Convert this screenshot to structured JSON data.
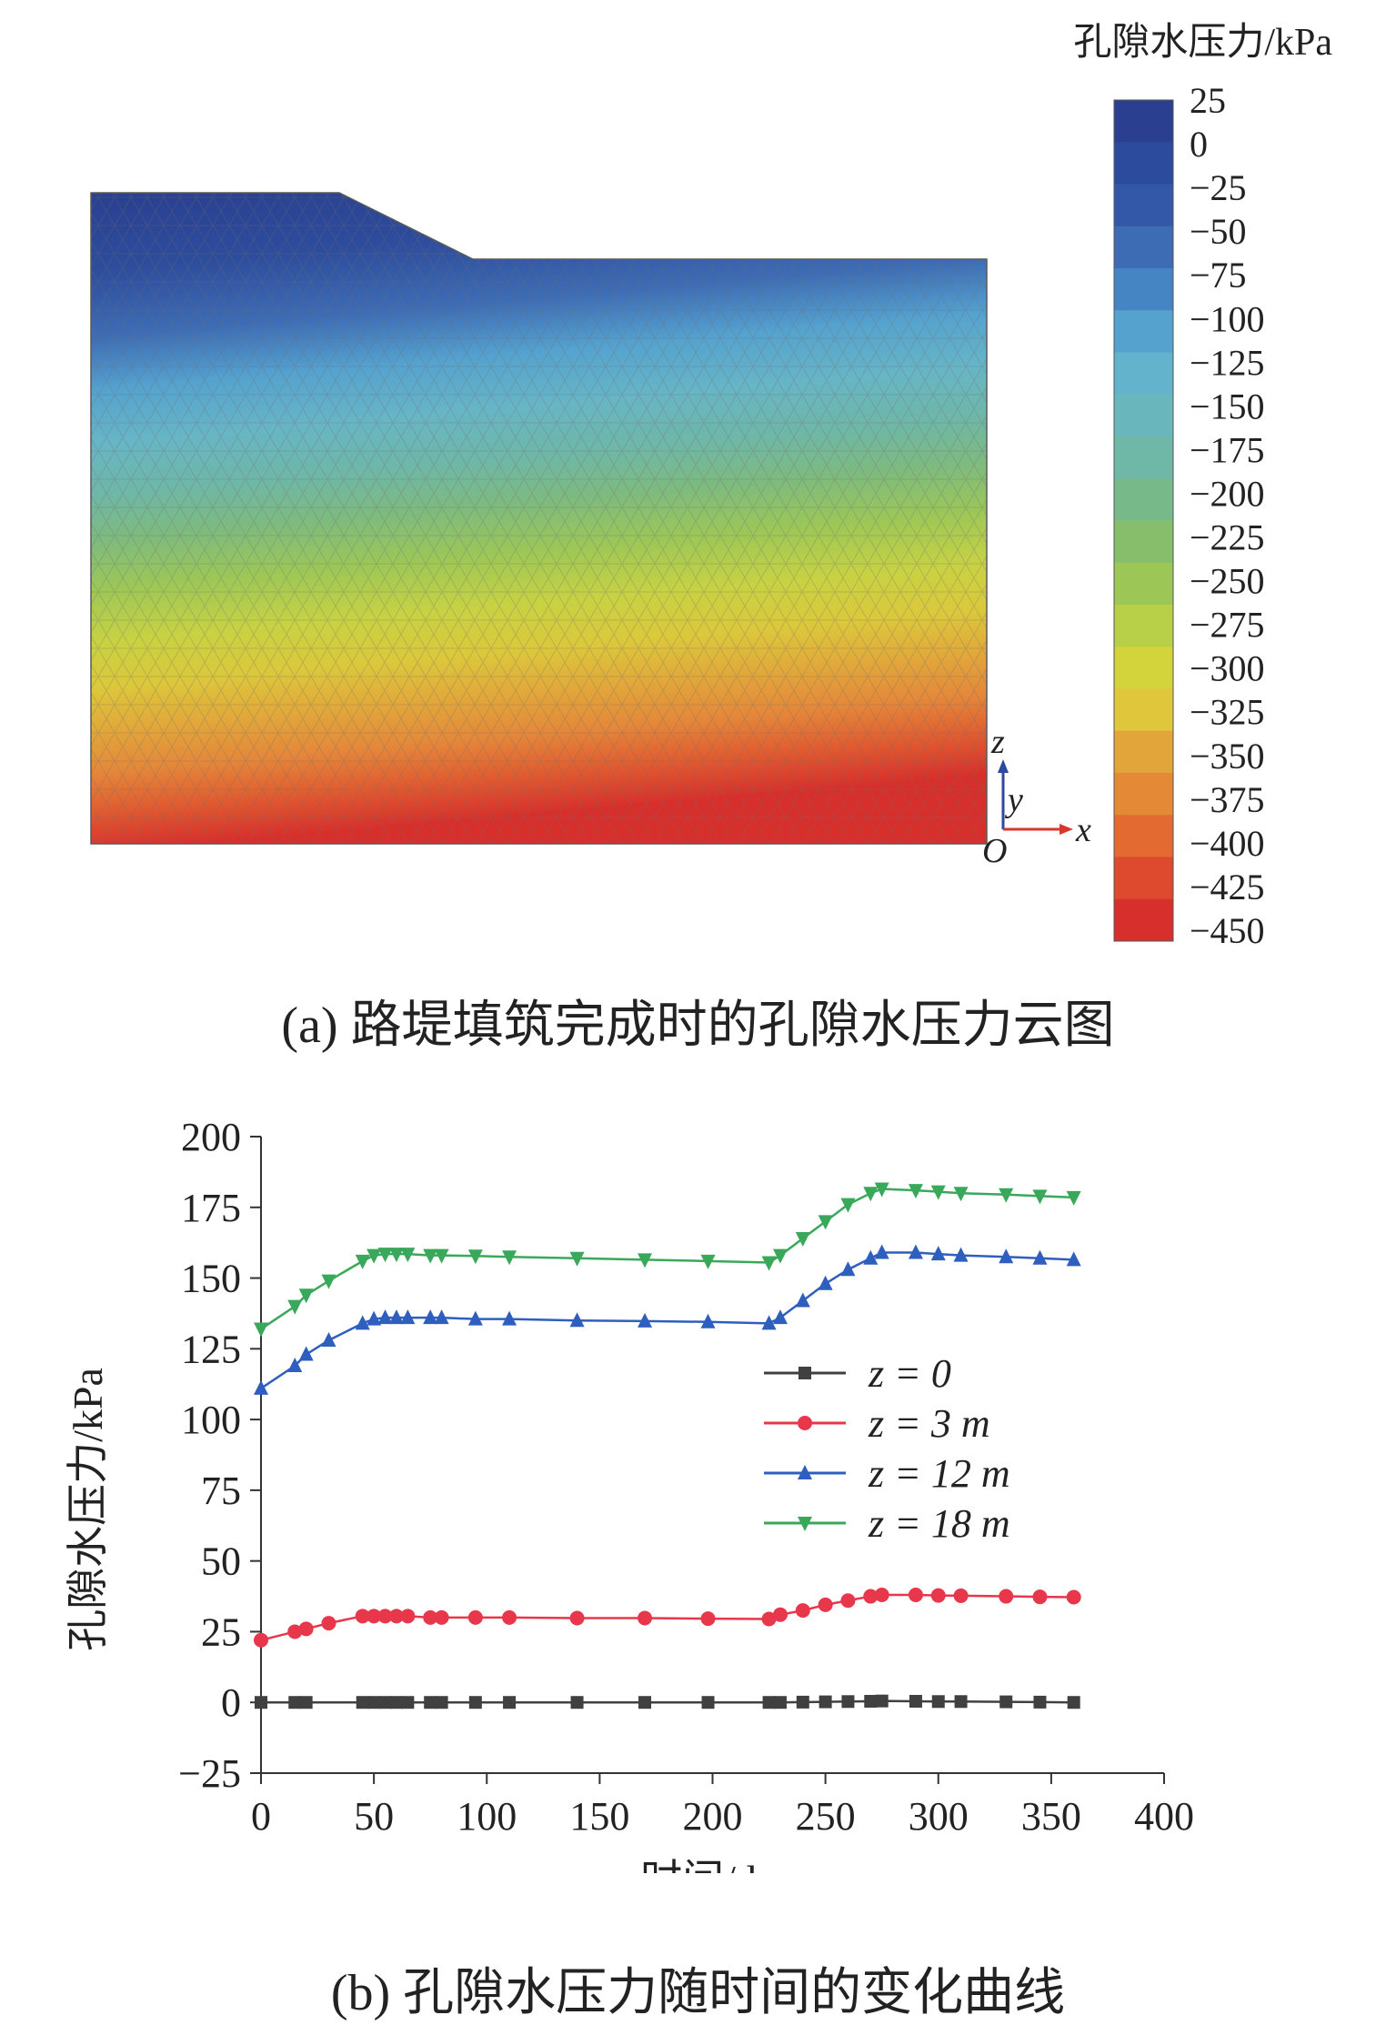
{
  "panel_a": {
    "colorbar_title": "孔隙水压力/kPa",
    "colorbar_ticks": [
      "25",
      "0",
      "−25",
      "−50",
      "−75",
      "−100",
      "−125",
      "−150",
      "−175",
      "−200",
      "−225",
      "−250",
      "−275",
      "−300",
      "−325",
      "−350",
      "−375",
      "−400",
      "−425",
      "−450"
    ],
    "colorbar_colors": [
      "#2a3f8f",
      "#2d4b9c",
      "#3358a8",
      "#3d6bb4",
      "#4685c4",
      "#55a2cf",
      "#64b3cc",
      "#6ab6bd",
      "#6fb7a6",
      "#78b98a",
      "#87be6c",
      "#9cc757",
      "#b8cf48",
      "#d3d43c",
      "#dfc63b",
      "#e2a53a",
      "#e48a36",
      "#e36a31",
      "#dd4a2d",
      "#d72f2b"
    ],
    "axis_labels": {
      "z": "z",
      "y": "y",
      "x": "x",
      "origin": "O"
    },
    "caption": "(a) 路堤填筑完成时的孔隙水压力云图"
  },
  "chart_data": {
    "type": "line",
    "xlabel": "时间/d",
    "ylabel": "孔隙水压力/kPa",
    "xlim": [
      0,
      400
    ],
    "ylim": [
      -25,
      200
    ],
    "xticks": [
      "0",
      "50",
      "100",
      "150",
      "200",
      "250",
      "300",
      "350",
      "400"
    ],
    "yticks": [
      "−25",
      "0",
      "25",
      "50",
      "75",
      "100",
      "125",
      "150",
      "175",
      "200"
    ],
    "legend_position": "center-right",
    "series": [
      {
        "name": "z = 0",
        "color": "#404040",
        "marker": "square",
        "x": [
          0,
          15,
          20,
          45,
          50,
          55,
          60,
          65,
          75,
          80,
          95,
          110,
          140,
          170,
          198,
          225,
          230,
          240,
          250,
          260,
          270,
          275,
          290,
          300,
          310,
          330,
          345,
          360
        ],
        "y": [
          0,
          0,
          0,
          0,
          0,
          0,
          0,
          0,
          0,
          0,
          0,
          0,
          0,
          0,
          0,
          0,
          0,
          0.1,
          0.2,
          0.3,
          0.4,
          0.5,
          0.4,
          0.3,
          0.3,
          0.2,
          0.1,
          0
        ]
      },
      {
        "name": "z = 3 m",
        "color": "#e8364a",
        "marker": "circle",
        "x": [
          0,
          15,
          20,
          30,
          45,
          50,
          55,
          60,
          65,
          75,
          80,
          95,
          110,
          140,
          170,
          198,
          225,
          230,
          240,
          250,
          260,
          270,
          275,
          290,
          300,
          310,
          330,
          345,
          360
        ],
        "y": [
          22,
          25,
          26,
          28,
          30.5,
          30.5,
          30.5,
          30.5,
          30.5,
          30,
          30,
          30,
          30,
          29.8,
          29.8,
          29.6,
          29.5,
          31,
          32.5,
          34.5,
          36,
          37.5,
          38,
          38,
          37.8,
          37.7,
          37.5,
          37.3,
          37.2
        ]
      },
      {
        "name": "z = 12 m",
        "color": "#2e5fbf",
        "marker": "triangle-up",
        "x": [
          0,
          15,
          20,
          30,
          45,
          50,
          55,
          60,
          65,
          75,
          80,
          95,
          110,
          140,
          170,
          198,
          225,
          230,
          240,
          250,
          260,
          270,
          275,
          290,
          300,
          310,
          330,
          345,
          360
        ],
        "y": [
          111,
          119,
          123,
          128,
          134,
          135.5,
          136,
          136,
          136,
          136,
          136,
          135.5,
          135.5,
          135,
          134.8,
          134.5,
          134,
          136,
          142,
          148,
          153,
          157,
          159,
          159,
          158.5,
          158,
          157.5,
          157,
          156.5
        ]
      },
      {
        "name": "z = 18 m",
        "color": "#3aa85a",
        "marker": "triangle-down",
        "x": [
          0,
          15,
          20,
          30,
          45,
          50,
          55,
          60,
          65,
          75,
          80,
          95,
          110,
          140,
          170,
          198,
          225,
          230,
          240,
          250,
          260,
          270,
          275,
          290,
          300,
          310,
          330,
          345,
          360
        ],
        "y": [
          132,
          140,
          144,
          149,
          156,
          158,
          158.5,
          158.5,
          158.5,
          158,
          158,
          157.8,
          157.5,
          157,
          156.5,
          156,
          155.5,
          158,
          164,
          170,
          176,
          180,
          181.5,
          181,
          180.5,
          180,
          179.5,
          179,
          178.5
        ]
      }
    ]
  },
  "panel_b_caption": "(b) 孔隙水压力随时间的变化曲线"
}
